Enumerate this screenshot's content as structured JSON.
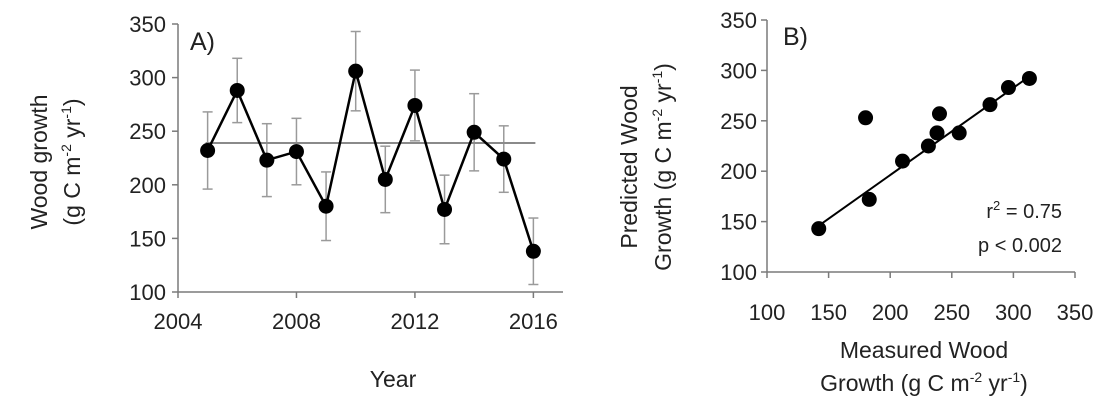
{
  "chart_data": [
    {
      "type": "line",
      "panel_label": "A)",
      "xlabel": "Year",
      "ylabel_line1": "Wood growth",
      "ylabel_line2": "(g C m",
      "ylabel_sup1": "-2",
      "ylabel_mid": " yr",
      "ylabel_sup2": "-1",
      "ylabel_end": ")",
      "xlim": [
        2004,
        2017
      ],
      "ylim": [
        100,
        350
      ],
      "xticks": [
        2004,
        2008,
        2012,
        2016
      ],
      "yticks": [
        100,
        150,
        200,
        250,
        300,
        350
      ],
      "x": [
        2005,
        2006,
        2007,
        2008,
        2009,
        2010,
        2011,
        2012,
        2013,
        2014,
        2015,
        2016
      ],
      "y": [
        232,
        288,
        223,
        231,
        180,
        306,
        205,
        274,
        177,
        249,
        224,
        138
      ],
      "error": [
        36,
        30,
        34,
        31,
        32,
        37,
        31,
        33,
        32,
        36,
        31,
        31
      ],
      "mean_line": 239
    },
    {
      "type": "scatter",
      "panel_label": "B)",
      "xlabel_line1": "Measured Wood",
      "xlabel_line2": "Growth (g C m",
      "xlabel_sup1": "-2",
      "xlabel_mid": " yr",
      "xlabel_sup2": "-1",
      "xlabel_end": ")",
      "ylabel_line1": "Predicted Wood",
      "ylabel_line2": "Growth (g C m",
      "ylabel_sup1": "-2",
      "ylabel_mid": " yr",
      "ylabel_sup2": "-1",
      "ylabel_end": ")",
      "xlim": [
        100,
        350
      ],
      "ylim": [
        100,
        350
      ],
      "xticks": [
        100,
        150,
        200,
        250,
        300,
        350
      ],
      "yticks": [
        100,
        150,
        200,
        250,
        300,
        350
      ],
      "x": [
        142,
        180,
        183,
        210,
        231,
        238,
        240,
        256,
        281,
        296,
        313
      ],
      "y": [
        143,
        253,
        172,
        210,
        225,
        238,
        257,
        238,
        266,
        283,
        292
      ],
      "fit_line": {
        "x": [
          142,
          313
        ],
        "y": [
          146,
          294
        ]
      },
      "r2_prefix": "r",
      "r2_sup": "2",
      "r2_suffix": " = 0.75",
      "p_text": "p < 0.002"
    }
  ]
}
